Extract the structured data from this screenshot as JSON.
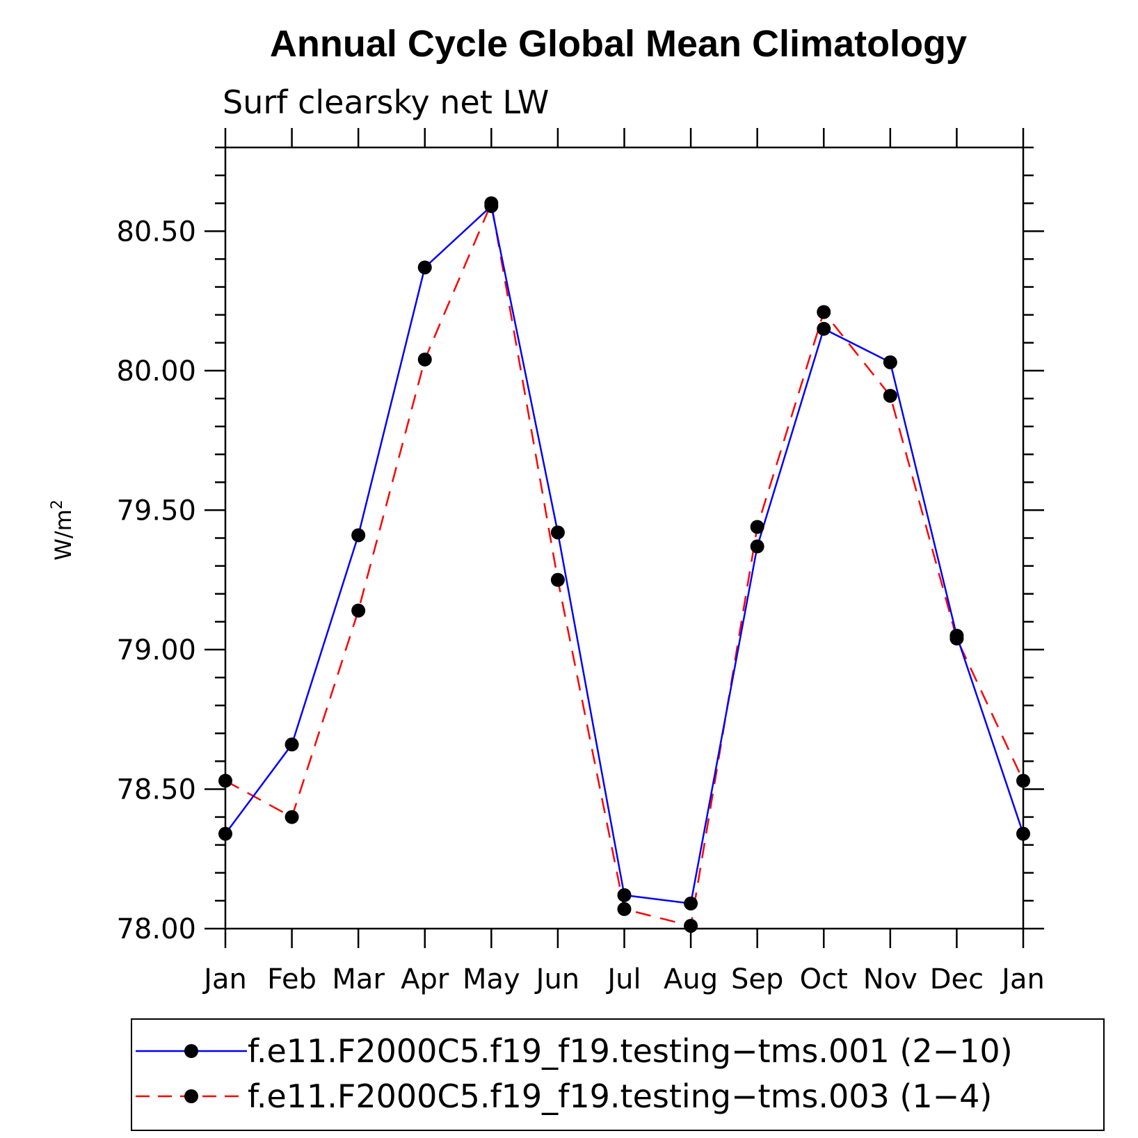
{
  "chart_data": {
    "type": "line",
    "title": "Annual Cycle Global Mean Climatology",
    "subtitle": "Surf clearsky net LW",
    "xlabel": "",
    "ylabel_base": "W/m",
    "ylabel_sup": "2",
    "categories": [
      "Jan",
      "Feb",
      "Mar",
      "Apr",
      "May",
      "Jun",
      "Jul",
      "Aug",
      "Sep",
      "Oct",
      "Nov",
      "Dec",
      "Jan"
    ],
    "ylim": [
      78.0,
      80.8
    ],
    "yticks": [
      "78.00",
      "78.50",
      "79.00",
      "79.50",
      "80.00",
      "80.50"
    ],
    "grid": false,
    "legend_position": "bottom",
    "series": [
      {
        "name": "f.e11.F2000C5.f19_f19.testing−tms.001 (2−10)",
        "color": "#0000ff",
        "dash": "solid",
        "marker": "filled-circle",
        "values": [
          78.34,
          78.66,
          79.41,
          80.37,
          80.59,
          79.42,
          78.12,
          78.09,
          79.37,
          80.15,
          80.03,
          79.05,
          78.34
        ]
      },
      {
        "name": "f.e11.F2000C5.f19_f19.testing−tms.003 (1−4)",
        "color": "#ff0000",
        "dash": "dashed",
        "marker": "filled-circle",
        "values": [
          78.53,
          78.4,
          79.14,
          80.04,
          80.6,
          79.25,
          78.07,
          78.01,
          79.44,
          80.21,
          79.91,
          79.04,
          78.53
        ]
      }
    ]
  }
}
